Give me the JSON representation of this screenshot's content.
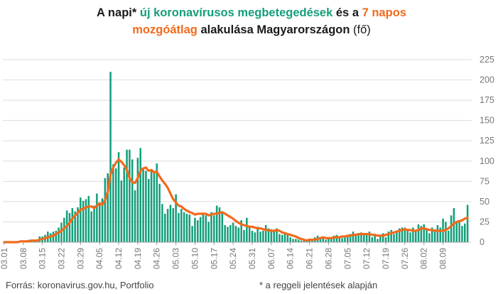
{
  "title": {
    "p1": "A napi* ",
    "p2_green": "új koronavírusos megbetegedések",
    "p3": " és a ",
    "p4_orange": "7 napos",
    "p5_orange": "mozgóátlag",
    "p6": " alakulása Magyarországon",
    "p7": " (fő)"
  },
  "footer": {
    "source": "Forrás: koronavirus.gov.hu, Portfolio",
    "note": "* a reggeli jelentések alapján"
  },
  "colors": {
    "bars": "#149e7b",
    "line": "#f26a1b",
    "axis_text": "#777777",
    "grid": "#dddddd"
  },
  "chart_data": {
    "type": "bar+line",
    "title": "A napi* új koronavírusos megbetegedések és a 7 napos mozgóátlag alakulása Magyarországon (fő)",
    "ylim": [
      0,
      225
    ],
    "yticks": [
      0,
      25,
      50,
      75,
      100,
      125,
      150,
      175,
      200,
      225
    ],
    "xtick_labels": [
      "03.01",
      "03.08",
      "03.15",
      "03.22",
      "03.29",
      "04.05",
      "04.12",
      "04.19",
      "04.26",
      "05.03",
      "05.10",
      "05.17",
      "05.24",
      "05.31",
      "06.07",
      "06.14",
      "06.21",
      "06.28",
      "07.05",
      "07.12",
      "07.19",
      "07.26",
      "08.02",
      "08.09"
    ],
    "xtick_every": 7,
    "series": [
      {
        "name": "Napi új megbetegedések",
        "type": "bar",
        "values": [
          0,
          0,
          0,
          0,
          1,
          0,
          1,
          2,
          1,
          3,
          3,
          3,
          2,
          7,
          7,
          9,
          13,
          11,
          13,
          14,
          18,
          24,
          30,
          39,
          36,
          42,
          38,
          43,
          55,
          51,
          53,
          57,
          38,
          45,
          60,
          49,
          54,
          79,
          85,
          210,
          96,
          91,
          111,
          76,
          92,
          114,
          114,
          102,
          64,
          104,
          116,
          91,
          88,
          78,
          89,
          88,
          97,
          72,
          47,
          35,
          41,
          46,
          42,
          59,
          36,
          41,
          37,
          35,
          34,
          20,
          30,
          27,
          31,
          36,
          33,
          25,
          37,
          33,
          45,
          43,
          38,
          21,
          19,
          21,
          24,
          20,
          18,
          27,
          15,
          30,
          20,
          14,
          12,
          19,
          13,
          14,
          21,
          17,
          16,
          14,
          17,
          10,
          9,
          12,
          9,
          6,
          4,
          4,
          3,
          2,
          2,
          2,
          4,
          4,
          6,
          8,
          5,
          6,
          3,
          4,
          5,
          8,
          9,
          6,
          5,
          8,
          7,
          10,
          13,
          9,
          11,
          12,
          11,
          10,
          13,
          6,
          8,
          4,
          7,
          11,
          6,
          13,
          15,
          10,
          12,
          17,
          18,
          18,
          15,
          12,
          18,
          13,
          22,
          20,
          22,
          15,
          11,
          18,
          16,
          21,
          18,
          29,
          25,
          14,
          33,
          42,
          24,
          25,
          20,
          23,
          46
        ]
      },
      {
        "name": "7 napos mozgóátlag",
        "type": "line",
        "values": [
          0,
          0,
          0,
          0,
          0,
          0,
          1,
          1,
          1,
          1,
          2,
          2,
          2,
          3,
          4,
          5,
          6,
          7,
          8,
          10,
          12,
          14,
          17,
          20,
          24,
          29,
          33,
          36,
          40,
          41,
          43,
          44,
          44,
          42,
          45,
          48,
          46,
          52,
          62,
          83,
          92,
          98,
          102,
          99,
          95,
          89,
          79,
          74,
          73,
          79,
          88,
          91,
          92,
          88,
          89,
          86,
          87,
          81,
          76,
          72,
          67,
          60,
          53,
          49,
          45,
          44,
          41,
          39,
          37,
          36,
          34,
          35,
          35,
          35,
          35,
          33,
          34,
          35,
          35,
          36,
          37,
          35,
          33,
          31,
          29,
          26,
          24,
          22,
          21,
          20,
          19,
          19,
          18,
          17,
          17,
          16,
          15,
          15,
          14,
          14,
          15,
          14,
          12,
          11,
          10,
          9,
          8,
          7,
          5,
          4,
          3,
          2,
          3,
          3,
          3,
          4,
          5,
          6,
          5,
          5,
          5,
          6,
          6,
          6,
          7,
          7,
          8,
          8,
          9,
          9,
          10,
          10,
          10,
          10,
          10,
          9,
          9,
          8,
          8,
          8,
          9,
          10,
          11,
          12,
          13,
          14,
          15,
          16,
          15,
          15,
          14,
          14,
          15,
          17,
          17,
          16,
          15,
          15,
          14,
          14,
          14,
          14,
          15,
          17,
          20,
          23,
          25,
          26,
          27,
          29,
          30
        ]
      }
    ]
  }
}
